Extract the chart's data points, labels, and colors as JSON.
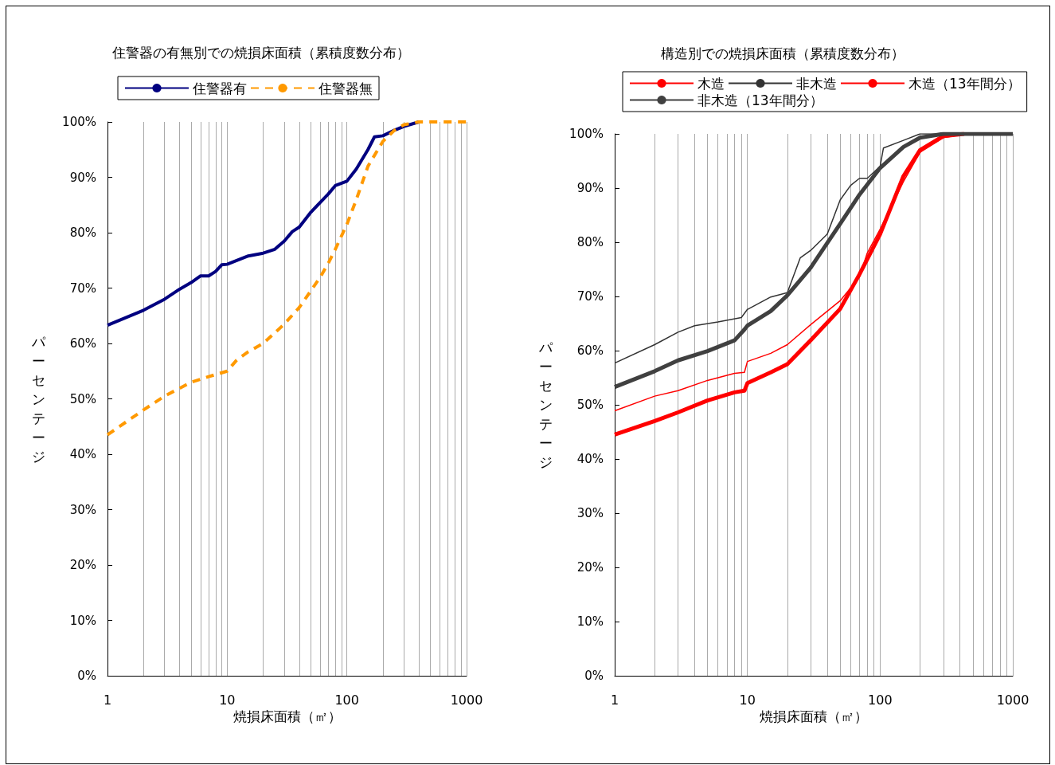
{
  "chart_data": [
    {
      "type": "line",
      "title": "住警器の有無別での焼損床面積（累積度数分布）",
      "xlabel": "焼損床面積（㎡）",
      "ylabel": "パーセンテージ",
      "log": "x",
      "grid": "x",
      "legend": "top",
      "marker": "none",
      "xlim": [
        1,
        1000
      ],
      "xticks": [
        1,
        {
          "value": 2,
          "label": null
        },
        {
          "value": 3,
          "label": null
        },
        {
          "value": 4,
          "label": null
        },
        {
          "value": 5,
          "label": null
        },
        {
          "value": 6,
          "label": null
        },
        {
          "value": 7,
          "label": null
        },
        {
          "value": 8,
          "label": null
        },
        {
          "value": 9,
          "label": null
        },
        10,
        {
          "value": 20,
          "label": null
        },
        {
          "value": 30,
          "label": null
        },
        {
          "value": 40,
          "label": null
        },
        {
          "value": 50,
          "label": null
        },
        {
          "value": 60,
          "label": null
        },
        {
          "value": 70,
          "label": null
        },
        {
          "value": 80,
          "label": null
        },
        {
          "value": 90,
          "label": null
        },
        100,
        {
          "value": 200,
          "label": null
        },
        {
          "value": 300,
          "label": null
        },
        {
          "value": 400,
          "label": null
        },
        {
          "value": 500,
          "label": null
        },
        {
          "value": 600,
          "label": null
        },
        {
          "value": 700,
          "label": null
        },
        {
          "value": 800,
          "label": null
        },
        {
          "value": 900,
          "label": null
        },
        1000
      ],
      "ylim": [
        0,
        100
      ],
      "yticks": [
        {
          "value": 0,
          "label": "0%"
        },
        {
          "value": 10,
          "label": "10%"
        },
        {
          "value": 20,
          "label": "20%"
        },
        {
          "value": 30,
          "label": "30%"
        },
        {
          "value": 40,
          "label": "40%"
        },
        {
          "value": 50,
          "label": "50%"
        },
        {
          "value": 60,
          "label": "60%"
        },
        {
          "value": 70,
          "label": "70%"
        },
        {
          "value": 80,
          "label": "80%"
        },
        {
          "value": 90,
          "label": "90%"
        },
        {
          "value": 100,
          "label": "100%"
        }
      ],
      "series": [
        {
          "name": "住警器有",
          "color": "#000080",
          "line_style": "solid",
          "x": [
            1,
            2,
            3,
            4,
            5,
            6,
            7,
            8,
            9,
            10,
            15,
            20,
            25,
            30,
            35,
            40,
            50,
            60,
            70,
            80,
            100,
            120,
            150,
            170,
            200,
            250,
            300,
            400
          ],
          "values": [
            63.3,
            66,
            68,
            69.8,
            71,
            72.2,
            72.2,
            73,
            74.2,
            74.3,
            75.8,
            76.3,
            77,
            78.5,
            80.2,
            81,
            83.7,
            85.5,
            87,
            88.5,
            89.3,
            91.5,
            95,
            97.3,
            97.5,
            98.5,
            99.2,
            100
          ]
        },
        {
          "name": "住警器無",
          "color": "#ff9900",
          "line_style": "dashed",
          "x": [
            1,
            2,
            3,
            5,
            7,
            10,
            12,
            15,
            20,
            30,
            40,
            50,
            60,
            70,
            80,
            100,
            120,
            150,
            200,
            250,
            300,
            400,
            1000
          ],
          "values": [
            43.5,
            48,
            50.5,
            53,
            54,
            55,
            57,
            58.5,
            60,
            63.5,
            66.5,
            69.5,
            72,
            74.5,
            77,
            81.5,
            86,
            92,
            96.5,
            98.5,
            99.5,
            100,
            100
          ]
        }
      ]
    },
    {
      "type": "line",
      "title": "構造別での焼損床面積（累積度数分布）",
      "xlabel": "焼損床面積（㎡）",
      "ylabel": "パーセンテージ",
      "log": "x",
      "grid": "x",
      "legend": "top",
      "marker": "none",
      "xlim": [
        1,
        1000
      ],
      "xticks": [
        1,
        {
          "value": 2,
          "label": null
        },
        {
          "value": 3,
          "label": null
        },
        {
          "value": 4,
          "label": null
        },
        {
          "value": 5,
          "label": null
        },
        {
          "value": 6,
          "label": null
        },
        {
          "value": 7,
          "label": null
        },
        {
          "value": 8,
          "label": null
        },
        {
          "value": 9,
          "label": null
        },
        10,
        {
          "value": 20,
          "label": null
        },
        {
          "value": 30,
          "label": null
        },
        {
          "value": 40,
          "label": null
        },
        {
          "value": 50,
          "label": null
        },
        {
          "value": 60,
          "label": null
        },
        {
          "value": 70,
          "label": null
        },
        {
          "value": 80,
          "label": null
        },
        {
          "value": 90,
          "label": null
        },
        100,
        {
          "value": 200,
          "label": null
        },
        {
          "value": 300,
          "label": null
        },
        {
          "value": 400,
          "label": null
        },
        {
          "value": 500,
          "label": null
        },
        {
          "value": 600,
          "label": null
        },
        {
          "value": 700,
          "label": null
        },
        {
          "value": 800,
          "label": null
        },
        {
          "value": 900,
          "label": null
        },
        1000
      ],
      "ylim": [
        0,
        100
      ],
      "yticks": [
        {
          "value": 0,
          "label": "0%"
        },
        {
          "value": 10,
          "label": "10%"
        },
        {
          "value": 20,
          "label": "20%"
        },
        {
          "value": 30,
          "label": "30%"
        },
        {
          "value": 40,
          "label": "40%"
        },
        {
          "value": 50,
          "label": "50%"
        },
        {
          "value": 60,
          "label": "60%"
        },
        {
          "value": 70,
          "label": "70%"
        },
        {
          "value": 80,
          "label": "80%"
        },
        {
          "value": 90,
          "label": "90%"
        },
        {
          "value": 100,
          "label": "100%"
        }
      ],
      "series": [
        {
          "name": "木造",
          "color": "#ff0000",
          "x": [
            1,
            2,
            3,
            5,
            8,
            9.5,
            10,
            15,
            20,
            30,
            50,
            70,
            80,
            100,
            150,
            200,
            300,
            400
          ],
          "values": [
            48.9,
            51.6,
            52.6,
            54.5,
            55.8,
            56,
            58,
            59.5,
            61.1,
            64.8,
            69.2,
            73.6,
            78,
            82.4,
            91.2,
            96.6,
            99.3,
            99.8
          ]
        },
        {
          "name": "非木造",
          "color": "#333333",
          "x": [
            1,
            2,
            3,
            4,
            6,
            9,
            10,
            15,
            20,
            25,
            30,
            40,
            50,
            60,
            70,
            80,
            100,
            106,
            150,
            200,
            1000
          ],
          "values": [
            57.7,
            61.1,
            63.4,
            64.6,
            65.3,
            66.1,
            67.6,
            69.9,
            70.7,
            77.1,
            78.5,
            81.5,
            87.8,
            90.5,
            91.8,
            91.8,
            94,
            97.4,
            98.8,
            100,
            100
          ]
        },
        {
          "name": "木造（13年間分）",
          "color": "#ff0000",
          "x": [
            1,
            2,
            3,
            5,
            8,
            9.5,
            10,
            15,
            20,
            30,
            50,
            70,
            100,
            120,
            150,
            200,
            300,
            430
          ],
          "values": [
            44.5,
            47,
            48.6,
            50.8,
            52.3,
            52.6,
            54,
            56,
            57.5,
            61.9,
            67.7,
            74.1,
            81.5,
            86.3,
            92.2,
            97,
            99.6,
            100
          ]
        },
        {
          "name": "非木造（13年間分）",
          "color": "#404040",
          "x": [
            1,
            2,
            3,
            5,
            8,
            9.5,
            10,
            15,
            20,
            30,
            50,
            70,
            100,
            150,
            200,
            300,
            1000
          ],
          "values": [
            53.3,
            56.2,
            58.2,
            59.9,
            61.9,
            63.9,
            64.6,
            67.3,
            70.2,
            75.3,
            83.4,
            88.8,
            93.7,
            97.6,
            99.3,
            100,
            100
          ]
        }
      ]
    }
  ]
}
